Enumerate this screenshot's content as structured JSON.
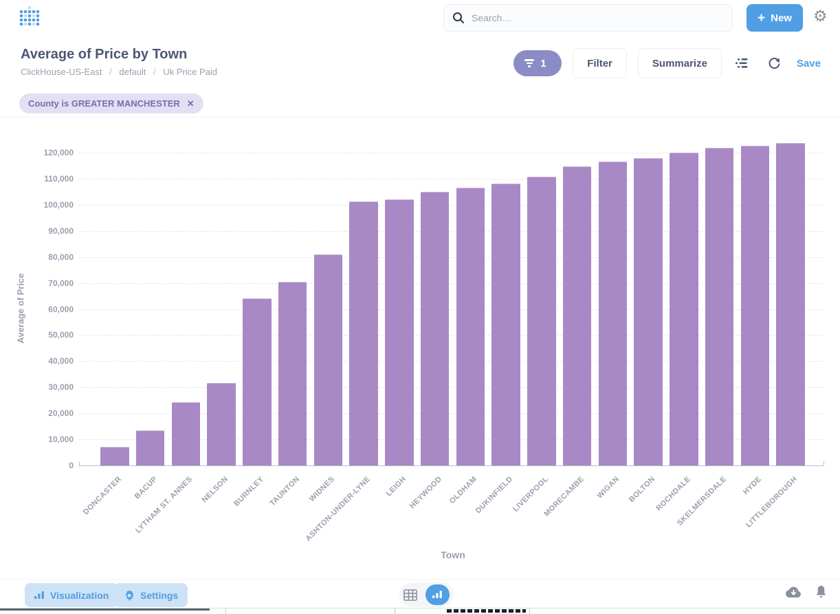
{
  "topbar": {
    "search_placeholder": "Search…",
    "new_label": "New",
    "icons": [
      "metabase-logo",
      "search-icon",
      "plus-icon",
      "gear-icon"
    ]
  },
  "header": {
    "title": "Average of Price by Town",
    "breadcrumb": [
      "ClickHouse-US-East",
      "default",
      "Uk Price Paid"
    ],
    "filter_count": "1",
    "filter_label": "Filter",
    "summarize_label": "Summarize",
    "save_label": "Save",
    "icons": [
      "filter-funnel-icon",
      "notebook-icon",
      "refresh-icon"
    ]
  },
  "filters": {
    "chip_label": "County is GREATER MANCHESTER",
    "chip_close": "✕"
  },
  "chart_data": {
    "type": "bar",
    "title": "Average of Price by Town",
    "xlabel": "Town",
    "ylabel": "Average of Price",
    "ylim": [
      0,
      120000
    ],
    "ytick_step": 10000,
    "grid": "dashed-horizontal",
    "legend": "none",
    "bar_color": "#a989c5",
    "categories": [
      "DONCASTER",
      "BACUP",
      "LYTHAM ST. ANNES",
      "NELSON",
      "BURNLEY",
      "TAUNTON",
      "WIDNES",
      "ASHTON-UNDER-LYNE",
      "LEIGH",
      "HEYWOOD",
      "OLDHAM",
      "DUKINFIELD",
      "LIVERPOOL",
      "MORECAMBE",
      "WIGAN",
      "BOLTON",
      "ROCHDALE",
      "SKELMERSDALE",
      "HYDE",
      "LITTLEBOROUGH"
    ],
    "values": [
      7100,
      13500,
      24200,
      31700,
      64000,
      70400,
      81000,
      101300,
      102000,
      105000,
      106600,
      108100,
      110800,
      114800,
      116700,
      118000,
      120000,
      121800,
      122700,
      123700
    ]
  },
  "footer": {
    "visualization_label": "Visualization",
    "settings_label": "Settings",
    "icons": [
      "bar-chart-icon",
      "gear-icon",
      "table-icon",
      "bar-chart-icon",
      "cloud-download-icon",
      "bell-icon"
    ]
  },
  "colors": {
    "accent_blue": "#509ee3",
    "title_dark": "#4c5773",
    "muted_gray": "#9aa0ae",
    "bar_purple": "#a989c5",
    "filter_pill_purple": "#8b8cc6",
    "chip_bg": "#e4dff2",
    "chip_text": "#7172ad"
  }
}
